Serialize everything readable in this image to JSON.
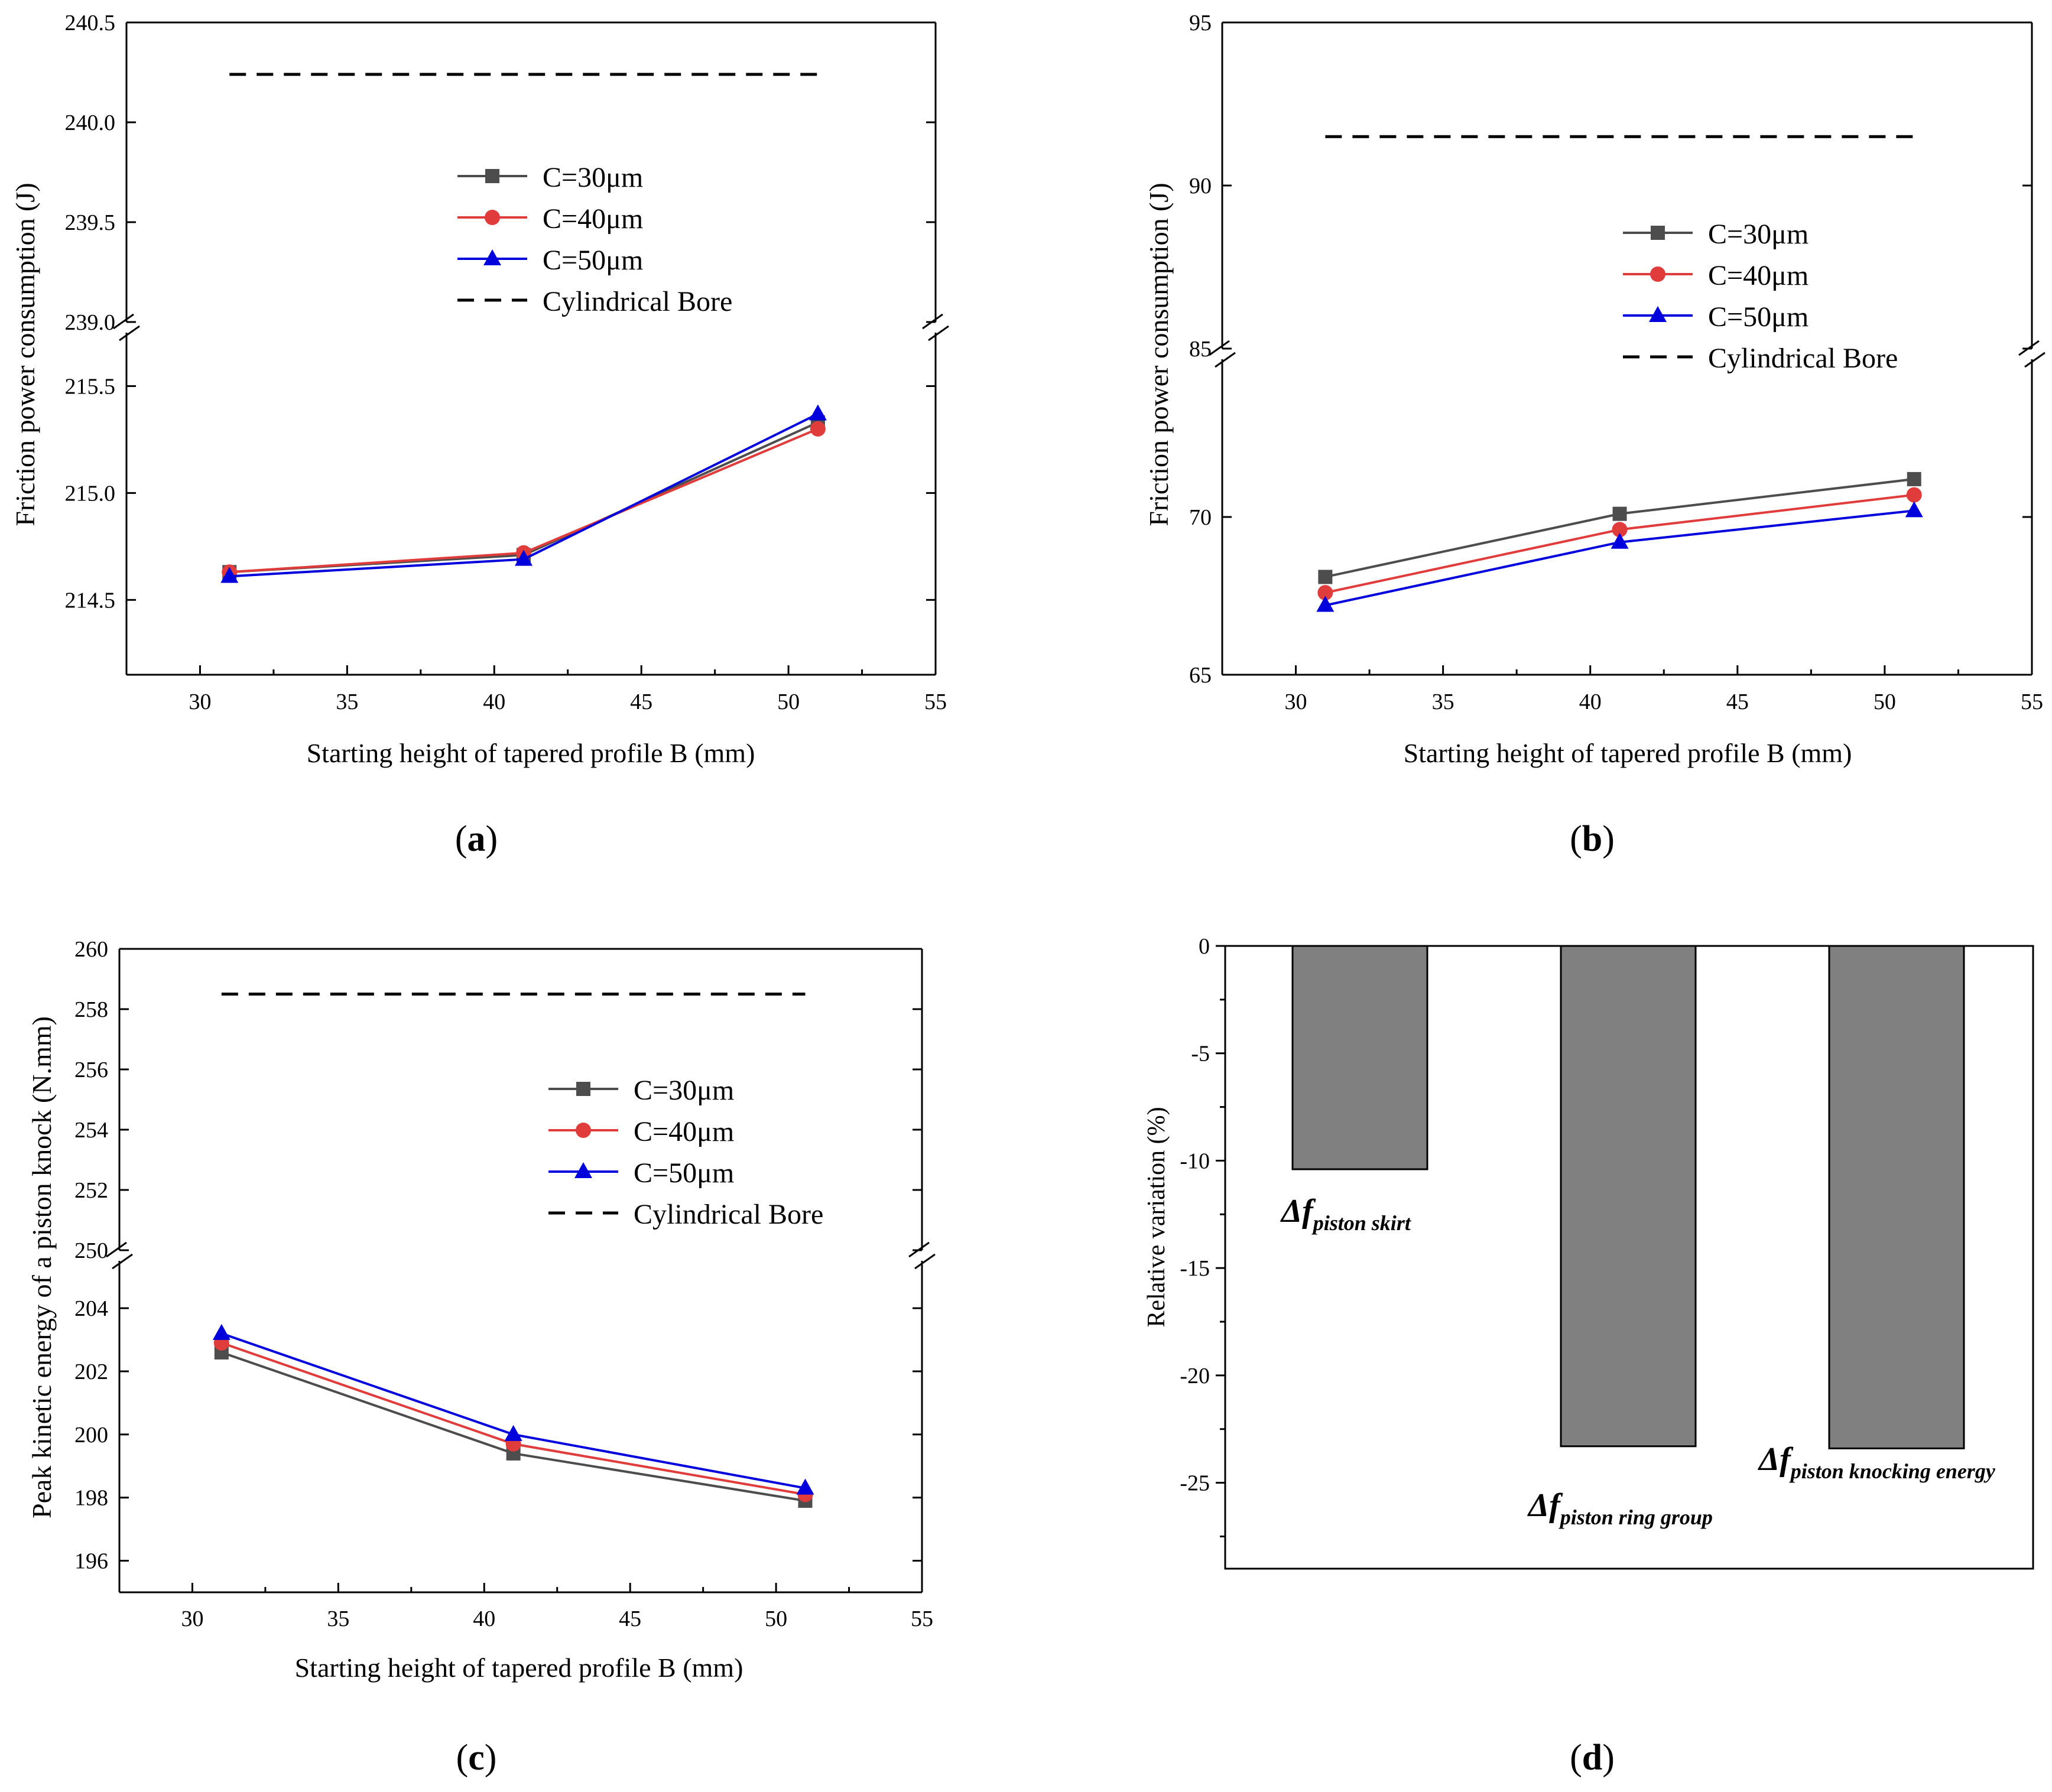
{
  "chart_data": [
    {
      "panel": "a",
      "type": "line",
      "panel_label": "a",
      "xlabel": "Starting height of tapered profile B (mm)",
      "ylabel": "Friction power consumption (J)",
      "x_ticks": [
        "30",
        "35",
        "40",
        "45",
        "50",
        "55"
      ],
      "x_range": [
        27.5,
        55
      ],
      "y_break": true,
      "y_upper_range": [
        239.0,
        240.5
      ],
      "y_upper_ticks": [
        "239.0",
        "239.5",
        "240.0",
        "240.5"
      ],
      "y_lower_range": [
        214.15,
        215.75
      ],
      "y_lower_ticks": [
        "214.5",
        "215.0",
        "215.5"
      ],
      "x": [
        31,
        41,
        51
      ],
      "series": [
        {
          "name": "C=30μm",
          "color": "#4d4d4d",
          "marker": "square",
          "values": [
            214.63,
            214.71,
            215.33
          ]
        },
        {
          "name": "C=40μm",
          "color": "#e03c3c",
          "marker": "circle",
          "values": [
            214.63,
            214.72,
            215.3
          ]
        },
        {
          "name": "C=50μm",
          "color": "#0000dd",
          "marker": "triangle",
          "values": [
            214.61,
            214.69,
            215.37
          ]
        }
      ],
      "reference": {
        "name": "Cylindrical Bore",
        "value": 240.24,
        "x_from": 31,
        "x_to": 51
      },
      "legend": [
        "C=30μm",
        "C=40μm",
        "C=50μm",
        "Cylindrical Bore"
      ]
    },
    {
      "panel": "b",
      "type": "line",
      "panel_label": "b",
      "xlabel": "Starting height of tapered profile B (mm)",
      "ylabel": "Friction power consumption (J)",
      "x_ticks": [
        "30",
        "35",
        "40",
        "45",
        "50",
        "55"
      ],
      "x_range": [
        27.5,
        55
      ],
      "y_break": true,
      "y_upper_range": [
        85,
        95
      ],
      "y_upper_ticks": [
        "85",
        "90",
        "95"
      ],
      "y_lower_range": [
        65,
        75
      ],
      "y_lower_ticks": [
        "65",
        "70"
      ],
      "x": [
        31,
        41,
        51
      ],
      "series": [
        {
          "name": "C=30μm",
          "color": "#4d4d4d",
          "marker": "square",
          "values": [
            68.1,
            70.1,
            71.2
          ]
        },
        {
          "name": "C=40μm",
          "color": "#e03c3c",
          "marker": "circle",
          "values": [
            67.6,
            69.6,
            70.7
          ]
        },
        {
          "name": "C=50μm",
          "color": "#0000dd",
          "marker": "triangle",
          "values": [
            67.2,
            69.2,
            70.2
          ]
        }
      ],
      "reference": {
        "name": "Cylindrical Bore",
        "value": 91.5,
        "x_from": 31,
        "x_to": 51
      },
      "legend": [
        "C=30μm",
        "C=40μm",
        "C=50μm",
        "Cylindrical Bore"
      ]
    },
    {
      "panel": "c",
      "type": "line",
      "panel_label": "c",
      "xlabel": "Starting height of tapered profile B (mm)",
      "ylabel": "Peak kinetic energy of a piston knock (N.mm)",
      "x_ticks": [
        "30",
        "35",
        "40",
        "45",
        "50",
        "55"
      ],
      "x_range": [
        27.5,
        55
      ],
      "y_break": true,
      "y_upper_range": [
        250,
        260
      ],
      "y_upper_ticks": [
        "250",
        "252",
        "254",
        "256",
        "258",
        "260"
      ],
      "y_lower_range": [
        195,
        205.5
      ],
      "y_lower_ticks": [
        "196",
        "198",
        "200",
        "202",
        "204"
      ],
      "x": [
        31,
        41,
        51
      ],
      "series": [
        {
          "name": "C=30μm",
          "color": "#4d4d4d",
          "marker": "square",
          "values": [
            202.6,
            199.4,
            197.9
          ]
        },
        {
          "name": "C=40μm",
          "color": "#e03c3c",
          "marker": "circle",
          "values": [
            202.9,
            199.7,
            198.1
          ]
        },
        {
          "name": "C=50μm",
          "color": "#0000dd",
          "marker": "triangle",
          "values": [
            203.2,
            200.0,
            198.3
          ]
        }
      ],
      "reference": {
        "name": "Cylindrical Bore",
        "value": 258.5,
        "x_from": 31,
        "x_to": 51
      },
      "legend": [
        "C=30μm",
        "C=40μm",
        "C=50μm",
        "Cylindrical Bore"
      ]
    },
    {
      "panel": "d",
      "type": "bar",
      "panel_label": "d",
      "xlabel": "",
      "ylabel": "Relative variation (%)",
      "y_range": [
        -29,
        0
      ],
      "y_ticks": [
        "0",
        "-5",
        "-10",
        "-15",
        "-20",
        "-25"
      ],
      "categories": [
        "piston skirt",
        "piston ring group",
        "piston knocking energy"
      ],
      "values": [
        -10.4,
        -23.3,
        -23.4
      ],
      "bar_color": "#808080",
      "annotations": [
        {
          "main": "Δf",
          "sub": "piston skirt"
        },
        {
          "main": "Δf",
          "sub": "piston ring group"
        },
        {
          "main": "Δf",
          "sub": "piston knocking energy"
        }
      ]
    }
  ]
}
